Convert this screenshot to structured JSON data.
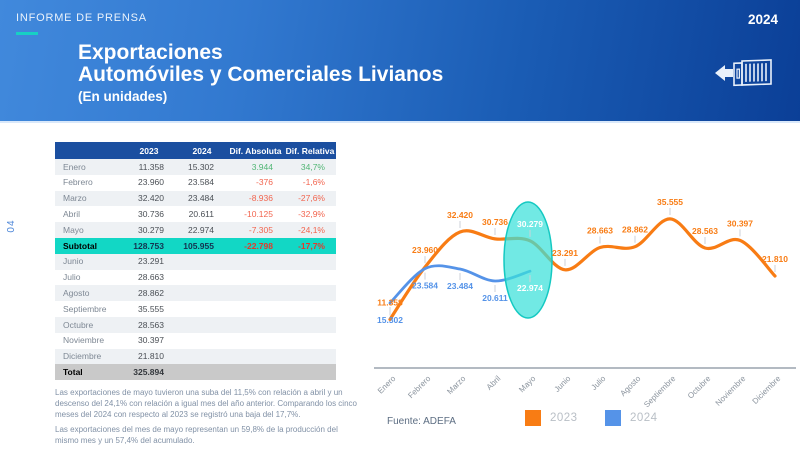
{
  "header": {
    "kicker": "INFORME DE PRENSA",
    "title_line1": "Exportaciones",
    "title_line2": "Automóviles y Comerciales Livianos",
    "title_line3": "(En unidades)",
    "year": "2024"
  },
  "page_number": "04",
  "colors": {
    "accent_teal": "#17d0c4",
    "subtotal_teal": "#12d7c5",
    "table_header_blue": "#1b4fa0",
    "positive_green": "#52b675",
    "negative_red": "#f2654f",
    "series_2023_orange": "#f87c14",
    "series_2024_blue": "#5593e8"
  },
  "table": {
    "columns": [
      "",
      "2023",
      "2024",
      "Dif. Absoluta",
      "Dif. Relativa"
    ],
    "rows": [
      {
        "label": "Enero",
        "y2023": "11.358",
        "y2024": "15.302",
        "dif_abs": "3.944",
        "dif_rel": "34,7%",
        "type": "month"
      },
      {
        "label": "Febrero",
        "y2023": "23.960",
        "y2024": "23.584",
        "dif_abs": "-376",
        "dif_rel": "-1,6%",
        "type": "month"
      },
      {
        "label": "Marzo",
        "y2023": "32.420",
        "y2024": "23.484",
        "dif_abs": "-8.936",
        "dif_rel": "-27,6%",
        "type": "month"
      },
      {
        "label": "Abril",
        "y2023": "30.736",
        "y2024": "20.611",
        "dif_abs": "-10.125",
        "dif_rel": "-32,9%",
        "type": "month"
      },
      {
        "label": "Mayo",
        "y2023": "30.279",
        "y2024": "22.974",
        "dif_abs": "-7.305",
        "dif_rel": "-24,1%",
        "type": "month"
      },
      {
        "label": "Subtotal",
        "y2023": "128.753",
        "y2024": "105.955",
        "dif_abs": "-22.798",
        "dif_rel": "-17,7%",
        "type": "subtotal"
      },
      {
        "label": "Junio",
        "y2023": "23.291",
        "y2024": "",
        "dif_abs": "",
        "dif_rel": "",
        "type": "month"
      },
      {
        "label": "Julio",
        "y2023": "28.663",
        "y2024": "",
        "dif_abs": "",
        "dif_rel": "",
        "type": "month"
      },
      {
        "label": "Agosto",
        "y2023": "28.862",
        "y2024": "",
        "dif_abs": "",
        "dif_rel": "",
        "type": "month"
      },
      {
        "label": "Septiembre",
        "y2023": "35.555",
        "y2024": "",
        "dif_abs": "",
        "dif_rel": "",
        "type": "month"
      },
      {
        "label": "Octubre",
        "y2023": "28.563",
        "y2024": "",
        "dif_abs": "",
        "dif_rel": "",
        "type": "month"
      },
      {
        "label": "Noviembre",
        "y2023": "30.397",
        "y2024": "",
        "dif_abs": "",
        "dif_rel": "",
        "type": "month"
      },
      {
        "label": "Diciembre",
        "y2023": "21.810",
        "y2024": "",
        "dif_abs": "",
        "dif_rel": "",
        "type": "month"
      },
      {
        "label": "Total",
        "y2023": "325.894",
        "y2024": "",
        "dif_abs": "",
        "dif_rel": "",
        "type": "total"
      }
    ]
  },
  "notes": {
    "p1": "Las exportaciones de mayo tuvieron una suba del 11,5% con relación a abril y un descenso del 24,1% con relación a igual mes del año anterior. Comparando los cinco meses del 2024 con respecto al 2023 se registró una baja del 17,7%.",
    "p2": "Las exportaciones del mes de mayo representan un 59,8% de la producción del mismo mes y un 57,4% del acumulado."
  },
  "chart": {
    "source": "Fuente: ADEFA"
  },
  "chart_data": {
    "type": "line",
    "title": "",
    "xlabel": "",
    "ylabel": "",
    "categories": [
      "Enero",
      "Febrero",
      "Marzo",
      "Abril",
      "Mayo",
      "Junio",
      "Julio",
      "Agosto",
      "Septiembre",
      "Octubre",
      "Noviembre",
      "Diciembre"
    ],
    "series": [
      {
        "name": "2023",
        "color": "#f87c14",
        "values": [
          11358,
          23960,
          32420,
          30736,
          30279,
          23291,
          28663,
          28862,
          35555,
          28563,
          30397,
          21810
        ],
        "labels": [
          "11.358",
          "23.960",
          "32.420",
          "30.736",
          "30.279",
          "23.291",
          "28.663",
          "28.862",
          "35.555",
          "28.563",
          "30.397",
          "21.810"
        ]
      },
      {
        "name": "2024",
        "color": "#5593e8",
        "values": [
          15302,
          23584,
          23484,
          20611,
          22974
        ],
        "labels": [
          "15.302",
          "23.584",
          "23.484",
          "20.611",
          "22.974"
        ]
      }
    ],
    "highlight": {
      "category": "Mayo",
      "shape": "ellipse",
      "fill": "#3ae0da",
      "fill_opacity": 0.72,
      "stroke": "#15c9c2"
    },
    "ylim": [
      10000,
      38000
    ],
    "grid": false,
    "legend_position": "bottom",
    "data_labels": true
  }
}
